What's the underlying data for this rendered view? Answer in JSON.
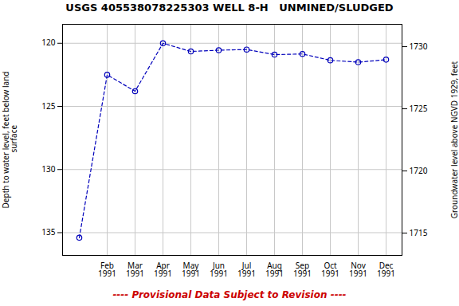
{
  "chart_data": {
    "type": "line",
    "title": "USGS 405538078225303 WELL 8-H   UNMINED/SLUDGED",
    "categories": [
      null,
      "Feb\n1991",
      "Mar\n1991",
      "Apr\n1991",
      "May\n1991",
      "Jun\n1991",
      "Jul\n1991",
      "Aug\n1991",
      "Sep\n1991",
      "Oct\n1991",
      "Nov\n1991",
      "Dec\n1991"
    ],
    "values": [
      135.4,
      122.5,
      123.8,
      120.0,
      120.65,
      120.55,
      120.5,
      120.9,
      120.85,
      121.35,
      121.5,
      121.3
    ],
    "color": "#0000BB",
    "marker": "circle",
    "line_style": "dashed",
    "ylabel": "Depth to water level, feet below land\n surface",
    "y2label": "Groundwater level above NGVD 1929, feet",
    "ylim": [
      136.8,
      118.5
    ],
    "yticks": [
      120,
      125,
      130,
      135
    ],
    "y2lim": [
      1713.2,
      1731.8
    ],
    "y2ticks": [
      1715,
      1720,
      1725,
      1730
    ],
    "grid": true,
    "annotations": [
      {
        "text": "---- Provisional Data Subject to Revision ----",
        "color": "#CC0000"
      }
    ]
  }
}
